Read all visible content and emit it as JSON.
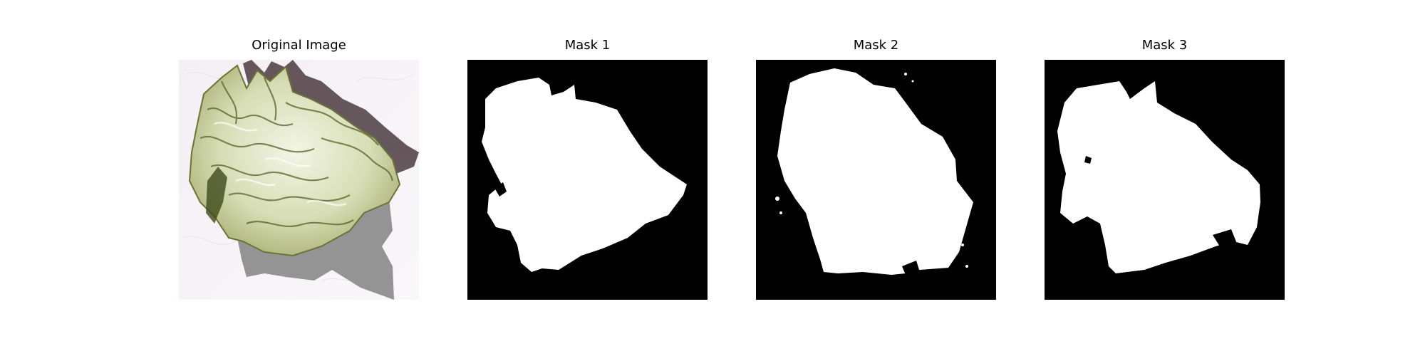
{
  "panels": [
    {
      "title": "Original Image"
    },
    {
      "title": "Mask 1"
    },
    {
      "title": "Mask 2"
    },
    {
      "title": "Mask 3"
    }
  ],
  "colors": {
    "background": "#ffffff",
    "mask_background": "#000000",
    "mask_foreground": "#ffffff",
    "leaf_light": "#e7edd3",
    "leaf_mid": "#b7c08a",
    "leaf_dark": "#5f6a2d",
    "shadow_gray": "#8a8a8a",
    "shadow_dark": "#4b3b40",
    "paper_tint": "#f3eef3"
  }
}
